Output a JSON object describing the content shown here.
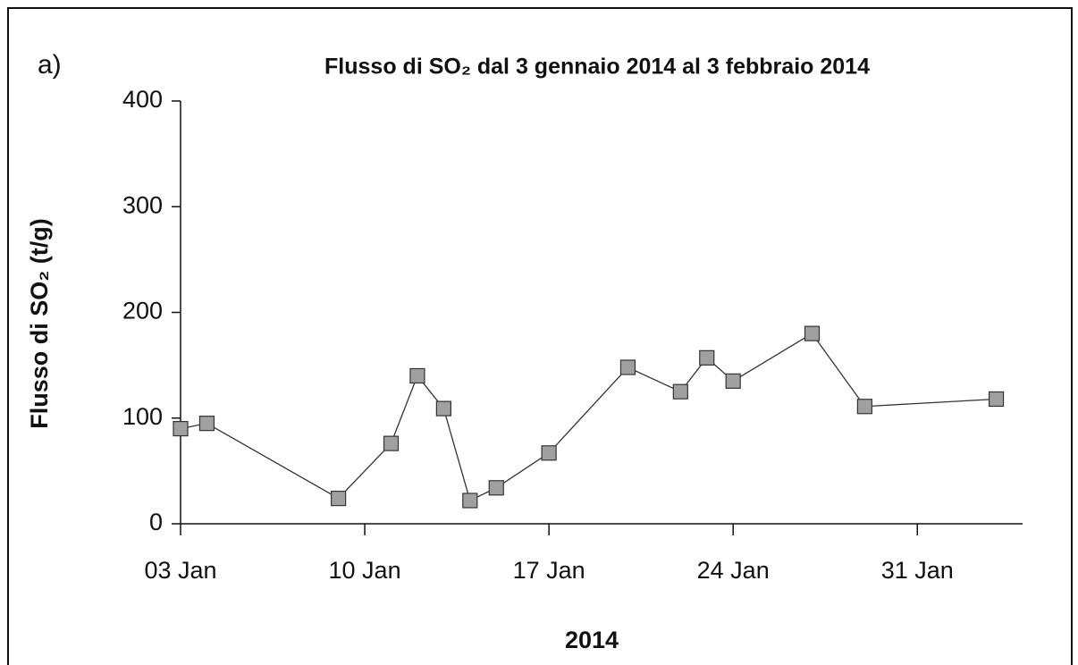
{
  "chart_data": {
    "type": "line",
    "panel_label": "a)",
    "title": "Flusso di SO₂ dal 3 gennaio 2014 al 3 febbraio 2014",
    "y_label": "Flusso di SO₂  (t/g)",
    "x_label": "2014",
    "x": [
      "2014-01-03",
      "2014-01-04",
      "2014-01-09",
      "2014-01-11",
      "2014-01-12",
      "2014-01-13",
      "2014-01-14",
      "2014-01-15",
      "2014-01-17",
      "2014-01-20",
      "2014-01-22",
      "2014-01-23",
      "2014-01-24",
      "2014-01-27",
      "2014-01-29",
      "2014-02-03"
    ],
    "values": [
      90,
      95,
      24,
      76,
      140,
      109,
      22,
      34,
      67,
      148,
      125,
      157,
      135,
      180,
      111,
      118
    ],
    "color": "#333333",
    "marker_color": "#a0a0a0",
    "xlim": [
      "2014-01-03",
      "2014-02-04"
    ],
    "xticks": [
      {
        "value": "2014-01-03",
        "label": "03 Jan"
      },
      {
        "value": "2014-01-10",
        "label": "10 Jan"
      },
      {
        "value": "2014-01-17",
        "label": "17 Jan"
      },
      {
        "value": "2014-01-24",
        "label": "24 Jan"
      },
      {
        "value": "2014-01-31",
        "label": "31 Jan"
      }
    ],
    "ylim": [
      0,
      400
    ],
    "yticks": [
      0,
      100,
      200,
      300,
      400
    ],
    "grid": false
  }
}
